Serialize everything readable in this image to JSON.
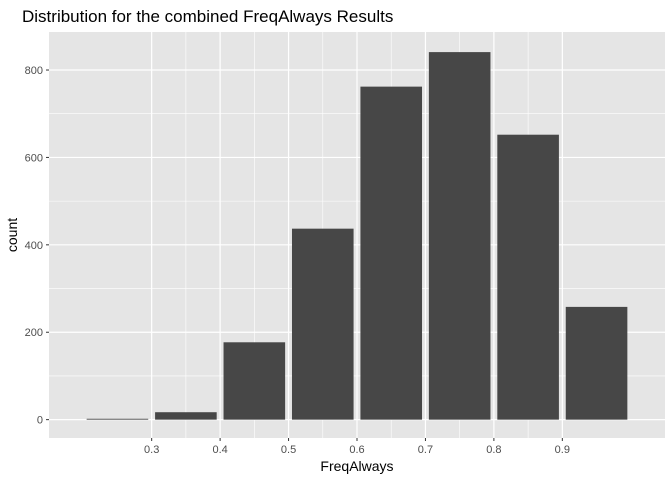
{
  "chart_data": {
    "type": "bar",
    "title": "Distribution for the combined FreqAlways Results",
    "xlabel": "FreqAlways",
    "ylabel": "count",
    "bins": [
      {
        "from": 0.2,
        "to": 0.3,
        "count": 2
      },
      {
        "from": 0.3,
        "to": 0.4,
        "count": 17
      },
      {
        "from": 0.4,
        "to": 0.5,
        "count": 177
      },
      {
        "from": 0.5,
        "to": 0.6,
        "count": 437
      },
      {
        "from": 0.6,
        "to": 0.7,
        "count": 762
      },
      {
        "from": 0.7,
        "to": 0.8,
        "count": 841
      },
      {
        "from": 0.8,
        "to": 0.9,
        "count": 652
      },
      {
        "from": 0.9,
        "to": 1.0,
        "count": 258
      }
    ],
    "xticks": [
      "0.3",
      "0.4",
      "0.5",
      "0.6",
      "0.7",
      "0.8",
      "0.9"
    ],
    "xtick_values": [
      0.3,
      0.4,
      0.5,
      0.6,
      0.7,
      0.8,
      0.9
    ],
    "yticks": [
      "0",
      "200",
      "400",
      "600",
      "800"
    ],
    "ytick_values": [
      0,
      200,
      400,
      600,
      800
    ],
    "xlim": [
      0.15,
      1.05
    ],
    "ylim": [
      -42,
      887
    ],
    "grid": true,
    "colors": {
      "panel_bg": "#e5e5e5",
      "grid_major": "#ffffff",
      "bar_fill": "#474747",
      "tick_mark": "#333333"
    }
  }
}
